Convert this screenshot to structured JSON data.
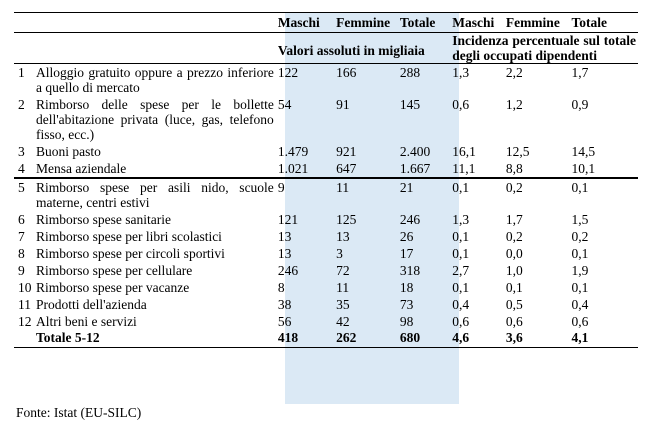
{
  "headers": {
    "maschi": "Maschi",
    "femmine": "Femmine",
    "totale": "Totale",
    "valori": "Valori assoluti in migliaia",
    "incidenza": "Incidenza percentuale sul totale degli occupati dipendenti"
  },
  "rows": [
    {
      "n": "1",
      "label": "Alloggio gratuito oppure a prezzo inferiore a quello di mercato",
      "m": "122",
      "f": "166",
      "t": "288",
      "pm": "1,3",
      "pf": "2,2",
      "pt": "1,7"
    },
    {
      "n": "2",
      "label": "Rimborso delle spese per le bollette dell'abitazione privata (luce, gas, telefono fisso, ecc.)",
      "m": "54",
      "f": "91",
      "t": "145",
      "pm": "0,6",
      "pf": "1,2",
      "pt": "0,9"
    },
    {
      "n": "3",
      "label": "Buoni pasto",
      "m": "1.479",
      "f": "921",
      "t": "2.400",
      "pm": "16,1",
      "pf": "12,5",
      "pt": "14,5"
    },
    {
      "n": "4",
      "label": "Mensa aziendale",
      "m": "1.021",
      "f": "647",
      "t": "1.667",
      "pm": "11,1",
      "pf": "8,8",
      "pt": "10,1"
    },
    {
      "n": "5",
      "label": "Rimborso spese per asili nido, scuole materne, centri estivi",
      "m": "9",
      "f": "11",
      "t": "21",
      "pm": "0,1",
      "pf": "0,2",
      "pt": "0,1"
    },
    {
      "n": "6",
      "label": "Rimborso spese sanitarie",
      "m": "121",
      "f": "125",
      "t": "246",
      "pm": "1,3",
      "pf": "1,7",
      "pt": "1,5"
    },
    {
      "n": "7",
      "label": "Rimborso spese per libri scolastici",
      "m": "13",
      "f": "13",
      "t": "26",
      "pm": "0,1",
      "pf": "0,2",
      "pt": "0,2"
    },
    {
      "n": "8",
      "label": "Rimborso spese per circoli sportivi",
      "m": "13",
      "f": "3",
      "t": "17",
      "pm": "0,1",
      "pf": "0,0",
      "pt": "0,1"
    },
    {
      "n": "9",
      "label": "Rimborso spese per cellulare",
      "m": "246",
      "f": "72",
      "t": "318",
      "pm": "2,7",
      "pf": "1,0",
      "pt": "1,9"
    },
    {
      "n": "10",
      "label": "Rimborso spese per vacanze",
      "m": "8",
      "f": "11",
      "t": "18",
      "pm": "0,1",
      "pf": "0,1",
      "pt": "0,1"
    },
    {
      "n": "11",
      "label": "Prodotti dell'azienda",
      "m": "38",
      "f": "35",
      "t": "73",
      "pm": "0,4",
      "pf": "0,5",
      "pt": "0,4"
    },
    {
      "n": "12",
      "label": "Altri beni e servizi",
      "m": "56",
      "f": "42",
      "t": "98",
      "pm": "0,6",
      "pf": "0,6",
      "pt": "0,6"
    }
  ],
  "total": {
    "label": "Totale 5-12",
    "m": "418",
    "f": "262",
    "t": "680",
    "pm": "4,6",
    "pf": "3,6",
    "pt": "4,1"
  },
  "source": "Fonte: Istat (EU-SILC)"
}
